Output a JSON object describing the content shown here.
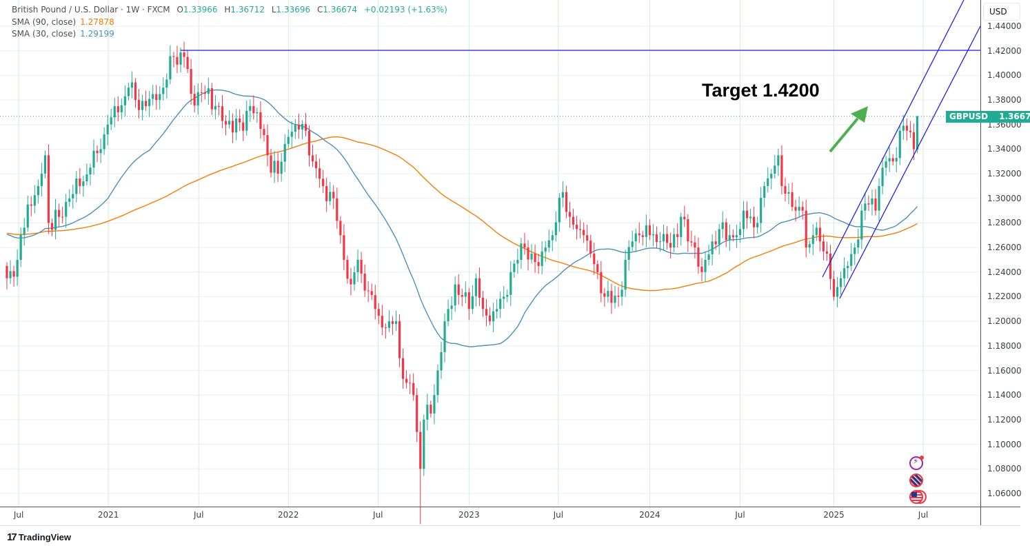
{
  "header": {
    "symbol_title": "British Pound / U.S. Dollar · 1W · FXCM",
    "open_label": "O",
    "open": "1.33966",
    "high_label": "H",
    "high": "1.36712",
    "low_label": "L",
    "low": "1.33696",
    "close_label": "C",
    "close": "1.36674",
    "change": "+0.02193 (+1.63%)",
    "sma90_label": "SMA (90, close)",
    "sma90_value": "1.27878",
    "sma30_label": "SMA (30, close)",
    "sma30_value": "1.29199"
  },
  "axis": {
    "currency": "USD",
    "price_labels": [
      "1.44000",
      "1.42000",
      "1.40000",
      "1.38000",
      "1.36000",
      "1.34000",
      "1.32000",
      "1.30000",
      "1.28000",
      "1.26000",
      "1.24000",
      "1.22000",
      "1.20000",
      "1.18000",
      "1.16000",
      "1.14000",
      "1.12000",
      "1.10000",
      "1.08000",
      "1.06000"
    ],
    "time_labels": [
      "Jul",
      "2021",
      "Jul",
      "2022",
      "Jul",
      "2023",
      "Jul",
      "2024",
      "Jul",
      "2025",
      "Jul"
    ],
    "time_label_weeks": [
      3.4,
      29.2,
      55.2,
      81,
      106.8,
      133,
      158.7,
      185,
      211,
      238,
      263.7
    ]
  },
  "price_tag": {
    "symbol": "GBPUSD",
    "value": "1.36674"
  },
  "annotation": {
    "text": "Target 1.4200",
    "target_level": 1.42
  },
  "branding": {
    "name": "TradingView"
  },
  "colors": {
    "up": "#22ab94",
    "down": "#f23645",
    "sma90": "#f57c00",
    "sma30": "#4a90b8",
    "drawing": "#1f1fe8",
    "arrow": "#4caf50"
  },
  "chart_data": {
    "type": "candlestick",
    "title": "British Pound / U.S. Dollar · 1W · FXCM",
    "ylabel": "USD",
    "ylim": [
      1.05,
      1.46
    ],
    "interval": "1W",
    "weekly_close_anchors": [
      [
        0,
        1.235
      ],
      [
        3,
        1.25
      ],
      [
        6,
        1.295
      ],
      [
        9,
        1.31
      ],
      [
        11,
        1.335
      ],
      [
        12,
        1.28
      ],
      [
        15,
        1.285
      ],
      [
        18,
        1.3
      ],
      [
        21,
        1.31
      ],
      [
        24,
        1.325
      ],
      [
        27,
        1.34
      ],
      [
        29,
        1.36
      ],
      [
        32,
        1.37
      ],
      [
        35,
        1.39
      ],
      [
        37,
        1.38
      ],
      [
        40,
        1.375
      ],
      [
        43,
        1.38
      ],
      [
        45,
        1.39
      ],
      [
        48,
        1.415
      ],
      [
        51,
        1.415
      ],
      [
        53,
        1.385
      ],
      [
        57,
        1.385
      ],
      [
        60,
        1.375
      ],
      [
        63,
        1.36
      ],
      [
        66,
        1.365
      ],
      [
        68,
        1.355
      ],
      [
        70,
        1.375
      ],
      [
        72,
        1.37
      ],
      [
        75,
        1.335
      ],
      [
        78,
        1.32
      ],
      [
        81,
        1.35
      ],
      [
        83,
        1.36
      ],
      [
        86,
        1.355
      ],
      [
        88,
        1.33
      ],
      [
        91,
        1.31
      ],
      [
        94,
        1.3
      ],
      [
        96,
        1.27
      ],
      [
        97,
        1.25
      ],
      [
        99,
        1.23
      ],
      [
        101,
        1.25
      ],
      [
        103,
        1.225
      ],
      [
        106,
        1.21
      ],
      [
        108,
        1.195
      ],
      [
        110,
        1.2
      ],
      [
        112,
        1.2
      ],
      [
        113,
        1.17
      ],
      [
        115,
        1.15
      ],
      [
        117,
        1.14
      ],
      [
        118,
        1.11
      ],
      [
        119,
        1.08
      ],
      [
        120,
        1.12
      ],
      [
        122,
        1.125
      ],
      [
        123,
        1.14
      ],
      [
        124,
        1.16
      ],
      [
        126,
        1.2
      ],
      [
        127,
        1.21
      ],
      [
        129,
        1.23
      ],
      [
        131,
        1.22
      ],
      [
        133,
        1.21
      ],
      [
        135,
        1.235
      ],
      [
        137,
        1.21
      ],
      [
        139,
        1.2
      ],
      [
        141,
        1.21
      ],
      [
        143,
        1.22
      ],
      [
        145,
        1.24
      ],
      [
        147,
        1.25
      ],
      [
        149,
        1.26
      ],
      [
        151,
        1.255
      ],
      [
        153,
        1.245
      ],
      [
        155,
        1.26
      ],
      [
        157,
        1.27
      ],
      [
        160,
        1.305
      ],
      [
        162,
        1.285
      ],
      [
        164,
        1.275
      ],
      [
        166,
        1.27
      ],
      [
        168,
        1.255
      ],
      [
        170,
        1.24
      ],
      [
        172,
        1.22
      ],
      [
        174,
        1.215
      ],
      [
        176,
        1.22
      ],
      [
        178,
        1.25
      ],
      [
        180,
        1.265
      ],
      [
        182,
        1.27
      ],
      [
        185,
        1.27
      ],
      [
        188,
        1.265
      ],
      [
        191,
        1.26
      ],
      [
        194,
        1.285
      ],
      [
        196,
        1.265
      ],
      [
        198,
        1.26
      ],
      [
        200,
        1.24
      ],
      [
        201,
        1.25
      ],
      [
        203,
        1.265
      ],
      [
        205,
        1.275
      ],
      [
        208,
        1.27
      ],
      [
        211,
        1.275
      ],
      [
        212,
        1.29
      ],
      [
        214,
        1.285
      ],
      [
        216,
        1.28
      ],
      [
        218,
        1.31
      ],
      [
        220,
        1.32
      ],
      [
        222,
        1.335
      ],
      [
        223,
        1.31
      ],
      [
        225,
        1.305
      ],
      [
        227,
        1.29
      ],
      [
        229,
        1.29
      ],
      [
        230,
        1.26
      ],
      [
        232,
        1.27
      ],
      [
        234,
        1.265
      ],
      [
        236,
        1.255
      ],
      [
        238,
        1.22
      ],
      [
        240,
        1.235
      ],
      [
        242,
        1.245
      ],
      [
        244,
        1.26
      ],
      [
        246,
        1.29
      ],
      [
        248,
        1.295
      ],
      [
        250,
        1.29
      ],
      [
        251,
        1.31
      ],
      [
        253,
        1.33
      ],
      [
        255,
        1.33
      ],
      [
        257,
        1.355
      ],
      [
        259,
        1.355
      ],
      [
        261,
        1.34
      ],
      [
        262,
        1.36674
      ]
    ],
    "last_candle": {
      "open": 1.33966,
      "high": 1.36712,
      "low": 1.33696,
      "close": 1.36674
    },
    "series": [
      {
        "name": "SMA (90, close)",
        "last": 1.27878
      },
      {
        "name": "SMA (30, close)",
        "last": 1.29199
      }
    ],
    "drawings": {
      "horizontal_level": 1.42,
      "channel": "ascending parallel channel from Jan 2025 low"
    },
    "grid": true
  }
}
